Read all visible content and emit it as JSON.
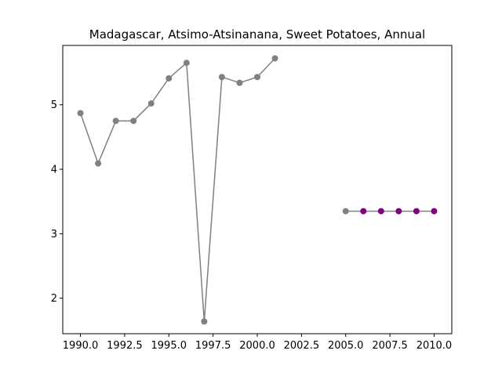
{
  "chart_data": {
    "type": "line",
    "title": "Madagascar, Atsimo-Atsinanana, Sweet Potatoes, Annual",
    "xlabel": "",
    "ylabel": "",
    "xlim": [
      1989.0,
      2011.0
    ],
    "ylim": [
      1.45,
      5.92
    ],
    "x_ticks": [
      1990.0,
      1992.5,
      1995.0,
      1997.5,
      2000.0,
      2002.5,
      2005.0,
      2007.5,
      2010.0
    ],
    "x_tick_labels": [
      "1990.0",
      "1992.5",
      "1995.0",
      "1997.5",
      "2000.0",
      "2002.5",
      "2005.0",
      "2007.5",
      "2010.0"
    ],
    "y_ticks": [
      2,
      3,
      4,
      5
    ],
    "y_tick_labels": [
      "2",
      "3",
      "4",
      "5"
    ],
    "grid": false,
    "line_color": "#808080",
    "marker_color": "#808080",
    "highlight_color": "#800080",
    "segments": [
      {
        "points": [
          {
            "x": 1990,
            "y": 4.87
          },
          {
            "x": 1991,
            "y": 4.09
          },
          {
            "x": 1992,
            "y": 4.75
          },
          {
            "x": 1993,
            "y": 4.75
          },
          {
            "x": 1994,
            "y": 5.02
          },
          {
            "x": 1995,
            "y": 5.41
          },
          {
            "x": 1996,
            "y": 5.65
          },
          {
            "x": 1997,
            "y": 1.64
          },
          {
            "x": 1998,
            "y": 5.43
          },
          {
            "x": 1999,
            "y": 5.34
          },
          {
            "x": 2000,
            "y": 5.43
          },
          {
            "x": 2001,
            "y": 5.72
          }
        ]
      },
      {
        "points": [
          {
            "x": 2005,
            "y": 3.35
          },
          {
            "x": 2006,
            "y": 3.35,
            "highlight": true
          },
          {
            "x": 2007,
            "y": 3.35,
            "highlight": true
          },
          {
            "x": 2008,
            "y": 3.35,
            "highlight": true
          },
          {
            "x": 2009,
            "y": 3.35,
            "highlight": true
          },
          {
            "x": 2010,
            "y": 3.35,
            "highlight": true
          }
        ]
      }
    ]
  }
}
